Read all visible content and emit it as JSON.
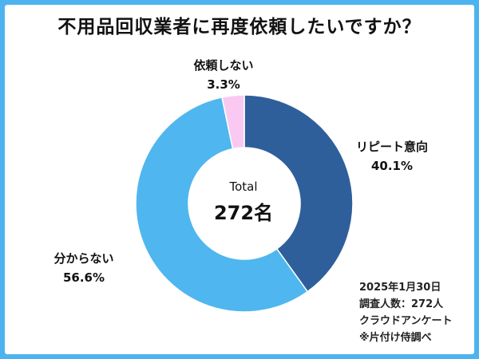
{
  "title": "不用品回収業者に再度依頼したいですか？",
  "center": {
    "label": "Total",
    "value": "272名"
  },
  "notes": [
    "2025年1月30日",
    "調査人数：272人",
    "クラウドアンケート",
    "※片付け侍調べ"
  ],
  "chart_data": {
    "type": "pie",
    "donut": true,
    "title": "不用品回収業者に再度依頼したいですか？",
    "total": 272,
    "slices": [
      {
        "label": "リピート意向",
        "value": 40.1,
        "value_label": "40.1%",
        "color": "#2e5f9b"
      },
      {
        "label": "分からない",
        "value": 56.6,
        "value_label": "56.6%",
        "color": "#4fb6ef"
      },
      {
        "label": "依頼しない",
        "value": 3.3,
        "value_label": "3.3%",
        "color": "#f9c9f2"
      }
    ]
  }
}
